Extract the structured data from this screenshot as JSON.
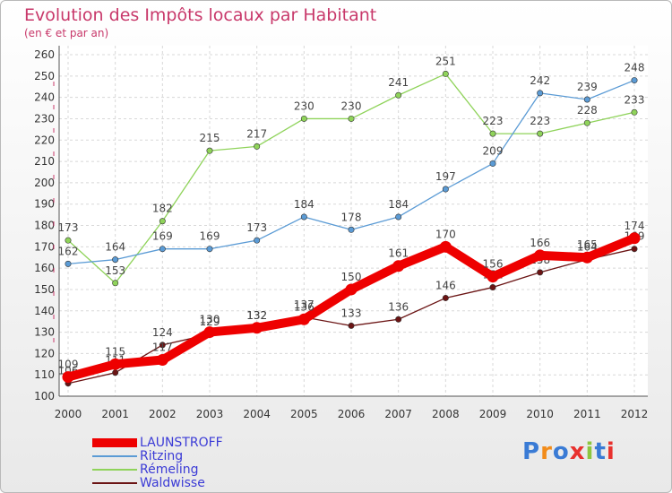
{
  "title": "Evolution des Impôts locaux par Habitant",
  "subtitle": "(en € et par an)",
  "brand": "Proxiti",
  "chart_data": {
    "type": "line",
    "title": "Evolution des Impôts locaux par Habitant",
    "subtitle": "(en € et par an)",
    "xlabel": "",
    "ylabel": "",
    "x": [
      "2000",
      "2001",
      "2002",
      "2003",
      "2004",
      "2005",
      "2006",
      "2007",
      "2008",
      "2009",
      "2010",
      "2011",
      "2012"
    ],
    "ylim": [
      100,
      260
    ],
    "yticks": [
      100,
      110,
      120,
      130,
      140,
      150,
      160,
      170,
      180,
      190,
      200,
      210,
      220,
      230,
      240,
      250,
      260
    ],
    "grid": true,
    "legend_position": "bottom-left",
    "series": [
      {
        "name": "Waldwisse",
        "color": "#6b1414",
        "values": [
          106,
          111,
          124,
          129,
          132,
          137,
          133,
          136,
          146,
          151,
          158,
          164,
          169
        ]
      },
      {
        "name": "Rémeling",
        "color": "#8fd35a",
        "values": [
          173,
          153,
          182,
          215,
          217,
          230,
          230,
          241,
          251,
          223,
          223,
          228,
          233
        ]
      },
      {
        "name": "Ritzing",
        "color": "#5b9bd5",
        "values": [
          162,
          164,
          169,
          169,
          173,
          184,
          178,
          184,
          197,
          209,
          242,
          239,
          248
        ]
      },
      {
        "name": "LAUNSTROFF",
        "color": "#ee0000",
        "values": [
          109,
          115,
          117,
          130,
          132,
          136,
          150,
          161,
          170,
          156,
          166,
          165,
          174
        ]
      }
    ]
  },
  "legend": [
    "LAUNSTROFF",
    "Ritzing",
    "Rémeling",
    "Waldwisse"
  ]
}
